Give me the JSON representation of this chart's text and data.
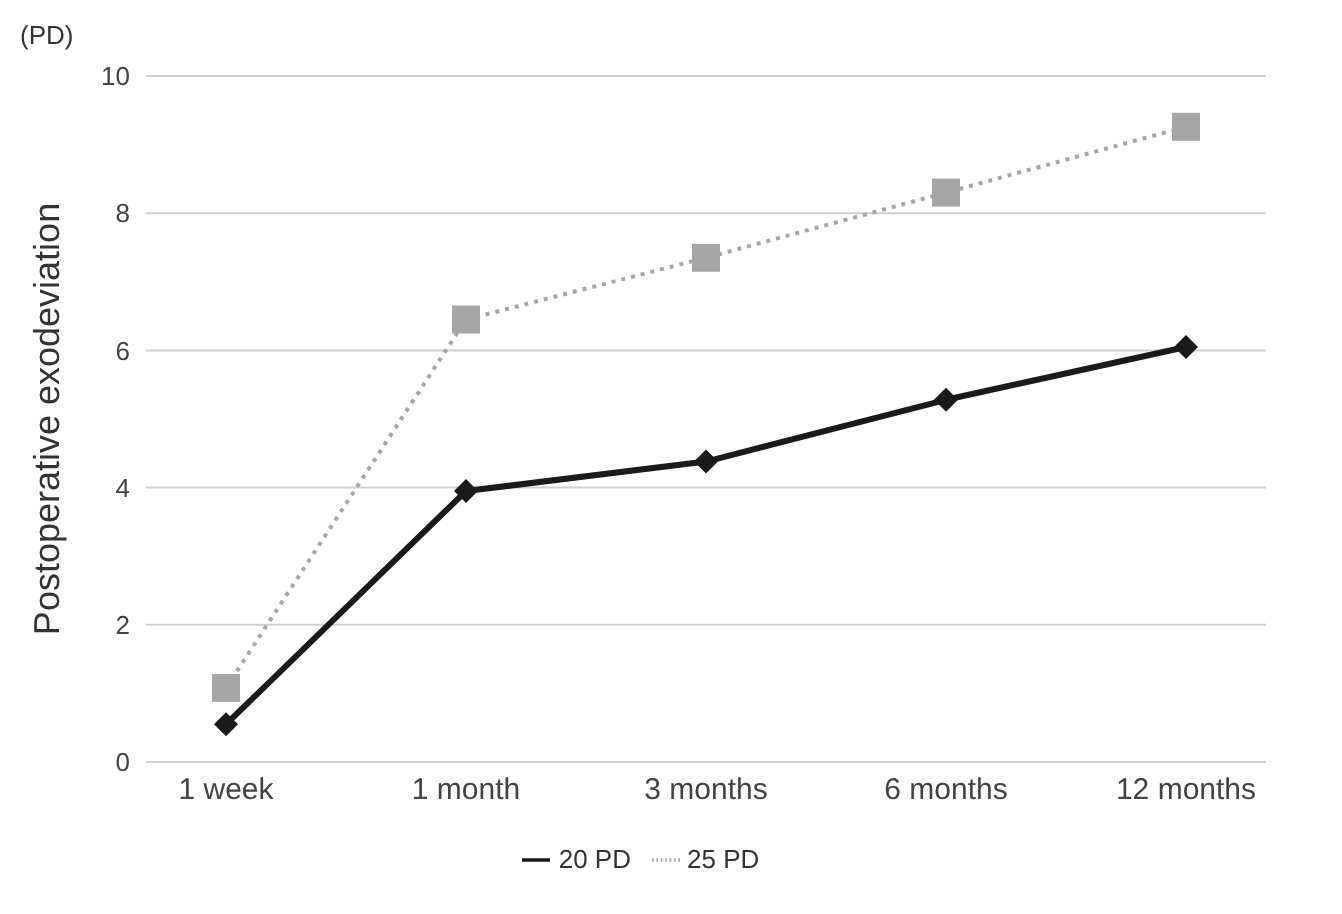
{
  "chart_data": {
    "type": "line",
    "ylabel": "Postoperative exodeviation",
    "annotations": [
      "(PD)"
    ],
    "categories": [
      "1 week",
      "1 month",
      "3 months",
      "6 months",
      "12 months"
    ],
    "series": [
      {
        "name": "20 PD",
        "color": "#1a1a1a",
        "values": [
          0.55,
          3.95,
          4.38,
          5.28,
          6.05
        ],
        "marker": "diamond",
        "line_style": "solid"
      },
      {
        "name": "25 PD",
        "color": "#a6a6a6",
        "values": [
          1.08,
          6.45,
          7.35,
          8.3,
          9.26
        ],
        "marker": "square",
        "line_style": "dotted"
      }
    ],
    "ylim": [
      0,
      10
    ],
    "yticks": [
      0,
      2,
      4,
      6,
      8,
      10
    ],
    "grid": "y",
    "legend": "bottom"
  }
}
